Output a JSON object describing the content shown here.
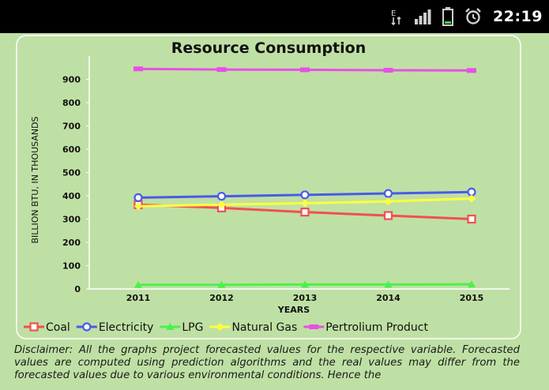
{
  "status_bar": {
    "time": "22:19",
    "icons": [
      "data-transfer-icon",
      "signal-icon",
      "battery-icon",
      "alarm-icon"
    ]
  },
  "chart_data": {
    "type": "line",
    "title": "Resource Consumption",
    "xlabel": "YEARS",
    "ylabel": "BILLION BTU, IN THOUSANDS",
    "categories": [
      "2011",
      "2012",
      "2013",
      "2014",
      "2015"
    ],
    "yticks": [
      "0",
      "100",
      "200",
      "300",
      "400",
      "500",
      "600",
      "700",
      "800",
      "900"
    ],
    "ylim": [
      0,
      1000
    ],
    "grid": false,
    "legend_position": "bottom",
    "series": [
      {
        "name": "Coal",
        "color": "#f05050",
        "marker": "square",
        "values": [
          362,
          348,
          330,
          315,
          300
        ]
      },
      {
        "name": "Electricity",
        "color": "#4a5ae8",
        "marker": "circle",
        "values": [
          392,
          398,
          404,
          410,
          416
        ]
      },
      {
        "name": "LPG",
        "color": "#4cf04c",
        "marker": "triangle",
        "values": [
          18,
          18,
          19,
          19,
          20
        ]
      },
      {
        "name": "Natural Gas",
        "color": "#ffff40",
        "marker": "diamond",
        "values": [
          355,
          362,
          368,
          376,
          388
        ]
      },
      {
        "name": "Pertrolium Product",
        "color": "#e84fe8",
        "marker": "bar",
        "values": [
          945,
          942,
          941,
          939,
          938
        ]
      }
    ]
  },
  "disclaimer": "Disclaimer: All the graphs project forecasted values for the respective variable. Forecasted values are computed using prediction algorithms and the real values may differ from the forecasted values due to various environmental conditions. Hence the"
}
